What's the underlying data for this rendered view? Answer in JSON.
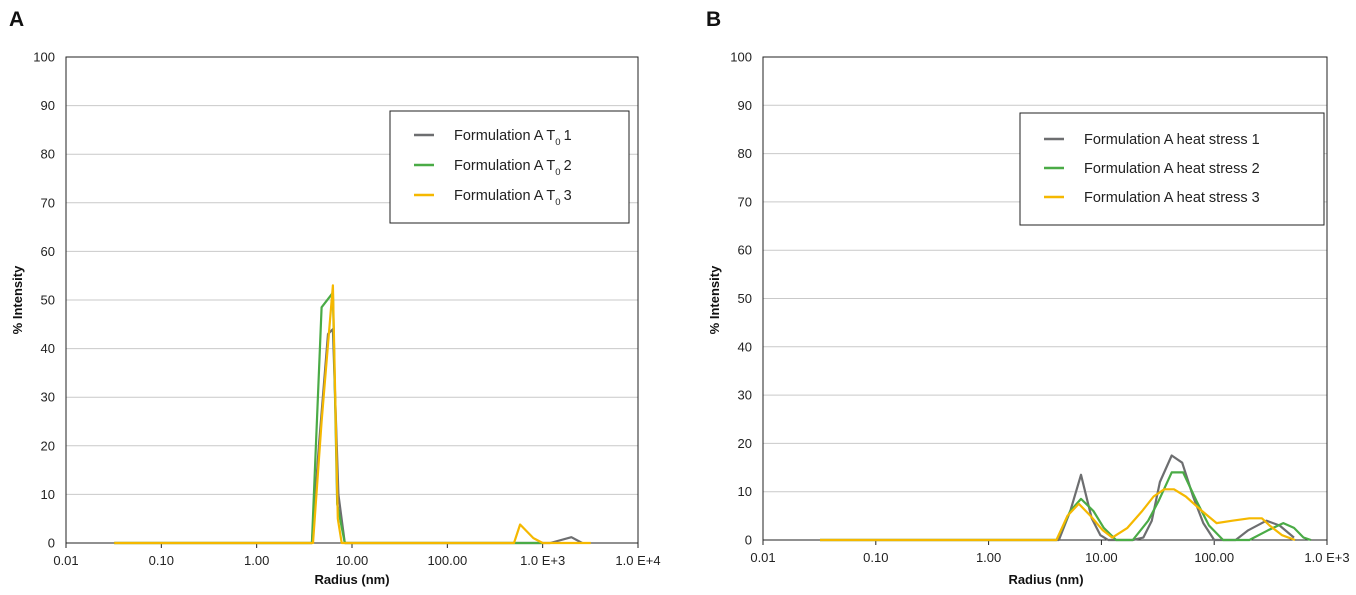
{
  "panels": [
    {
      "letter": "A"
    },
    {
      "letter": "B"
    }
  ],
  "chart_data": [
    {
      "type": "line",
      "panel": "A",
      "xlabel": "Radius (nm)",
      "ylabel": "% Intensity",
      "x_scale": "log",
      "xlim": [
        0.01,
        10000
      ],
      "ylim": [
        0,
        100
      ],
      "x_ticks": [
        0.01,
        0.1,
        1,
        10,
        100,
        1000,
        10000
      ],
      "x_tick_labels": [
        "0.01",
        "0.10",
        "1.00",
        "10.00",
        "100.00",
        "1.0 E+3",
        "1.0 E+4"
      ],
      "y_ticks": [
        0,
        10,
        20,
        30,
        40,
        50,
        60,
        70,
        80,
        90,
        100
      ],
      "y_tick_labels": [
        "0",
        "10",
        "20",
        "30",
        "40",
        "50",
        "60",
        "70",
        "80",
        "90",
        "100"
      ],
      "grid": "horizontal",
      "legend": {
        "position": "top-right",
        "subscript": true
      },
      "series": [
        {
          "name": "Formulation A T",
          "sub": "0",
          "suffix": "1",
          "color": "#6d6e70",
          "points": [
            [
              0.032,
              0
            ],
            [
              3.8,
              0
            ],
            [
              4.5,
              20
            ],
            [
              5.6,
              43
            ],
            [
              6.3,
              44
            ],
            [
              7.2,
              10
            ],
            [
              8.4,
              0
            ],
            [
              1200,
              0
            ],
            [
              2000,
              1.2
            ],
            [
              2600,
              0
            ]
          ]
        },
        {
          "name": "Formulation A T",
          "sub": "0",
          "suffix": "2",
          "color": "#4aab46",
          "points": [
            [
              0.032,
              0
            ],
            [
              3.8,
              0
            ],
            [
              4.8,
              48.5
            ],
            [
              6.3,
              51.5
            ],
            [
              7.0,
              8
            ],
            [
              8.4,
              0
            ],
            [
              1000,
              0
            ]
          ]
        },
        {
          "name": "Formulation A T",
          "sub": "0",
          "suffix": "3",
          "color": "#f5b800",
          "points": [
            [
              0.032,
              0
            ],
            [
              3.9,
              0
            ],
            [
              4.8,
              25
            ],
            [
              6.3,
              53
            ],
            [
              7.1,
              5
            ],
            [
              7.8,
              0
            ],
            [
              500,
              0
            ],
            [
              580,
              3.8
            ],
            [
              800,
              1
            ],
            [
              1000,
              0
            ],
            [
              3200,
              0
            ]
          ]
        }
      ]
    },
    {
      "type": "line",
      "panel": "B",
      "xlabel": "Radius (nm)",
      "ylabel": "% Intensity",
      "x_scale": "log",
      "xlim": [
        0.01,
        1000
      ],
      "ylim": [
        0,
        100
      ],
      "x_ticks": [
        0.01,
        0.1,
        1,
        10,
        100,
        1000
      ],
      "x_tick_labels": [
        "0.01",
        "0.10",
        "1.00",
        "10.00",
        "100.00",
        "1.0 E+3"
      ],
      "y_ticks": [
        0,
        10,
        20,
        30,
        40,
        50,
        60,
        70,
        80,
        90,
        100
      ],
      "y_tick_labels": [
        "0",
        "10",
        "20",
        "30",
        "40",
        "50",
        "60",
        "70",
        "80",
        "90",
        "100"
      ],
      "grid": "horizontal",
      "legend": {
        "position": "top-right",
        "subscript": false
      },
      "series": [
        {
          "name": "Formulation A heat stress 1",
          "color": "#6d6e70",
          "points": [
            [
              0.032,
              0
            ],
            [
              4.2,
              0
            ],
            [
              5.3,
              6
            ],
            [
              6.6,
              13.5
            ],
            [
              8.2,
              4.5
            ],
            [
              9.8,
              1
            ],
            [
              11.5,
              0
            ],
            [
              19,
              0
            ],
            [
              23.5,
              0.5
            ],
            [
              28,
              4
            ],
            [
              33,
              12
            ],
            [
              42,
              17.5
            ],
            [
              52,
              16
            ],
            [
              65,
              9
            ],
            [
              80,
              3.5
            ],
            [
              100,
              0
            ],
            [
              155,
              0
            ],
            [
              200,
              2
            ],
            [
              290,
              4
            ],
            [
              380,
              3
            ],
            [
              510,
              0.5
            ]
          ]
        },
        {
          "name": "Formulation A heat stress 2",
          "color": "#4aab46",
          "points": [
            [
              0.032,
              0
            ],
            [
              4.0,
              0
            ],
            [
              5.3,
              6
            ],
            [
              6.6,
              8.5
            ],
            [
              8.5,
              6
            ],
            [
              10.5,
              2.5
            ],
            [
              13.5,
              0
            ],
            [
              19,
              0
            ],
            [
              26,
              4
            ],
            [
              32,
              8
            ],
            [
              42,
              14
            ],
            [
              53,
              14
            ],
            [
              70,
              8
            ],
            [
              90,
              3
            ],
            [
              120,
              0
            ],
            [
              205,
              0
            ],
            [
              300,
              2
            ],
            [
              410,
              3.5
            ],
            [
              510,
              2.5
            ],
            [
              620,
              0.5
            ],
            [
              720,
              0
            ]
          ]
        },
        {
          "name": "Formulation A heat stress 3",
          "color": "#f5b800",
          "points": [
            [
              0.032,
              0
            ],
            [
              4.0,
              0
            ],
            [
              5.0,
              5
            ],
            [
              6.3,
              7.5
            ],
            [
              8.0,
              5
            ],
            [
              10.3,
              2
            ],
            [
              12.5,
              0.5
            ],
            [
              17,
              2.5
            ],
            [
              23,
              6
            ],
            [
              29,
              9
            ],
            [
              36,
              10.5
            ],
            [
              44,
              10.5
            ],
            [
              56,
              9
            ],
            [
              78,
              6
            ],
            [
              105,
              3.5
            ],
            [
              145,
              4
            ],
            [
              205,
              4.5
            ],
            [
              265,
              4.5
            ],
            [
              310,
              3
            ],
            [
              400,
              1
            ],
            [
              520,
              0
            ]
          ]
        }
      ]
    }
  ]
}
